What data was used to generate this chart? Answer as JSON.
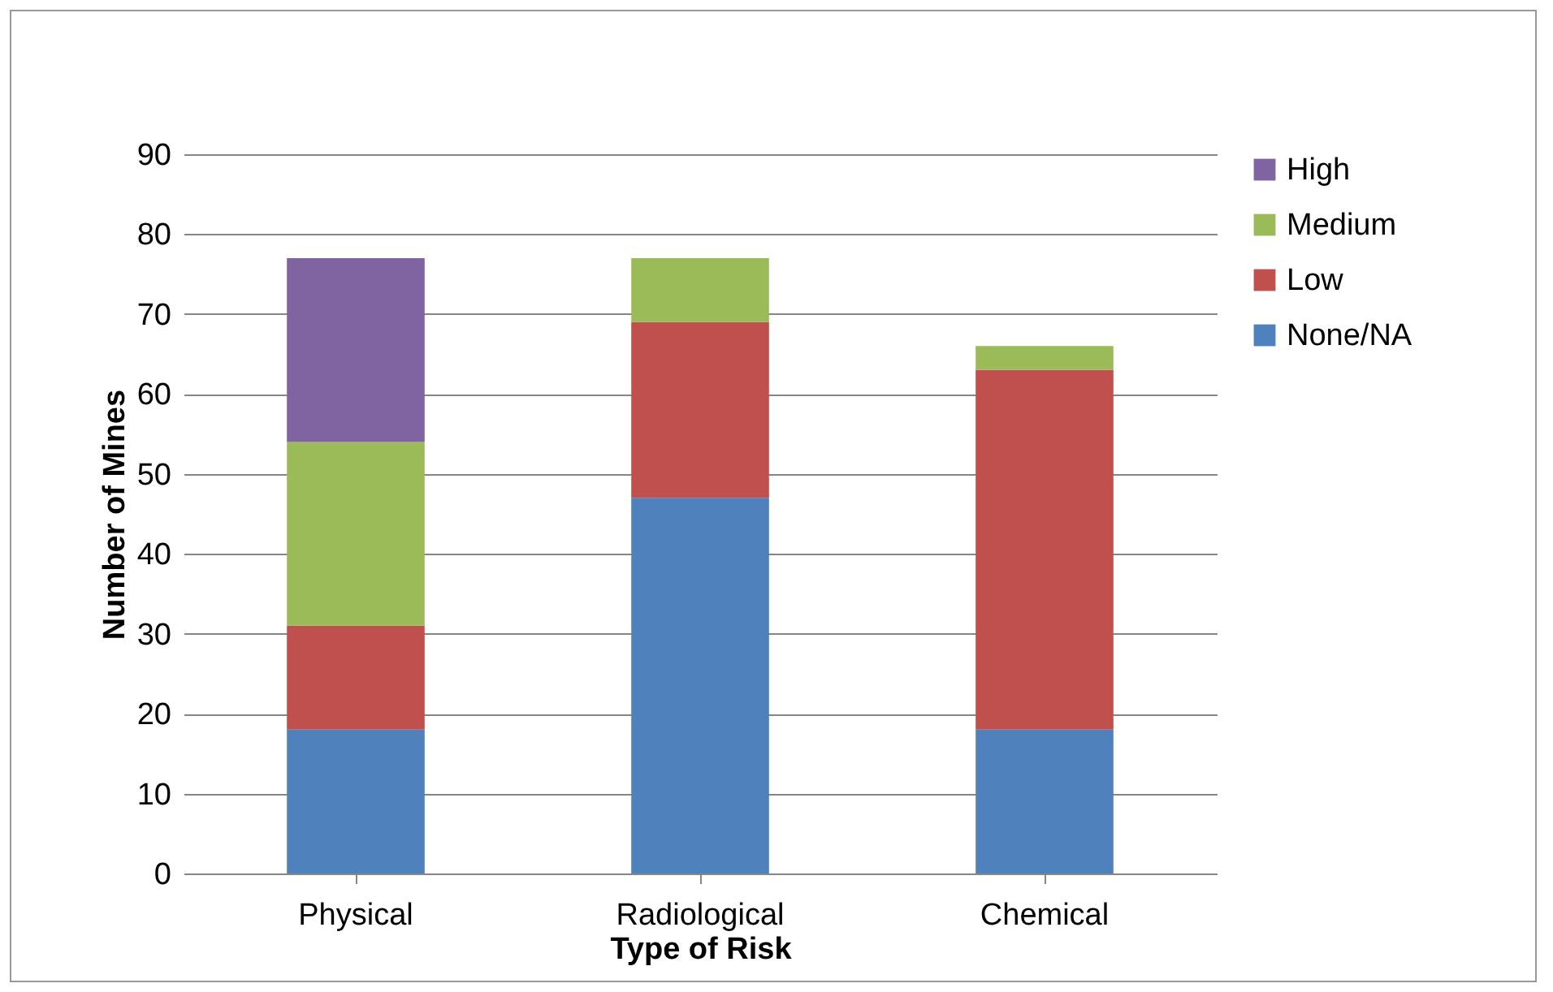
{
  "chart_data": {
    "type": "bar",
    "stacked": true,
    "xlabel": "Type of Risk",
    "ylabel": "Number of Mines",
    "categories": [
      "Physical",
      "Radiological",
      "Chemical"
    ],
    "series": [
      {
        "name": "None/NA",
        "color": "#4f81bd",
        "values": [
          18,
          47,
          18
        ]
      },
      {
        "name": "Low",
        "color": "#c0504d",
        "values": [
          13,
          22,
          45
        ]
      },
      {
        "name": "Medium",
        "color": "#9bbb59",
        "values": [
          23,
          8,
          3
        ]
      },
      {
        "name": "High",
        "color": "#8064a2",
        "values": [
          23,
          null,
          null
        ]
      }
    ],
    "ylim": [
      0,
      90
    ],
    "yticks": [
      0,
      10,
      20,
      30,
      40,
      50,
      60,
      70,
      80,
      90
    ],
    "grid": "y",
    "legend": "right"
  }
}
